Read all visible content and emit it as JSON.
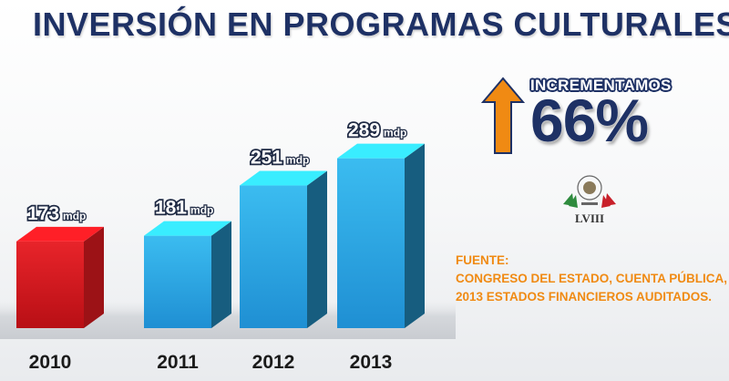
{
  "title": "INVERSIÓN EN PROGRAMAS CULTURALES",
  "chart_data": {
    "type": "bar",
    "categories": [
      "2010",
      "2011",
      "2012",
      "2013"
    ],
    "values": [
      173,
      181,
      251,
      289
    ],
    "value_unit": "mdp",
    "colors": [
      "#d9191f",
      "#29a9e6",
      "#29a9e6",
      "#29a9e6"
    ],
    "ylim": [
      150,
      300
    ],
    "grid": false,
    "xlabel": "",
    "ylabel": ""
  },
  "increase": {
    "label": "INCREMENTAMOS",
    "value": "66%",
    "icon": "arrow-up-icon",
    "arrow_color": "#f08a13"
  },
  "emblem": {
    "icon": "congress-emblem-icon",
    "name": "LVIII"
  },
  "source": {
    "heading": "FUENTE:",
    "lines": [
      "CONGRESO DEL ESTADO, CUENTA PÚBLICA,",
      "2013 ESTADOS FINANCIEROS AUDITADOS."
    ]
  }
}
